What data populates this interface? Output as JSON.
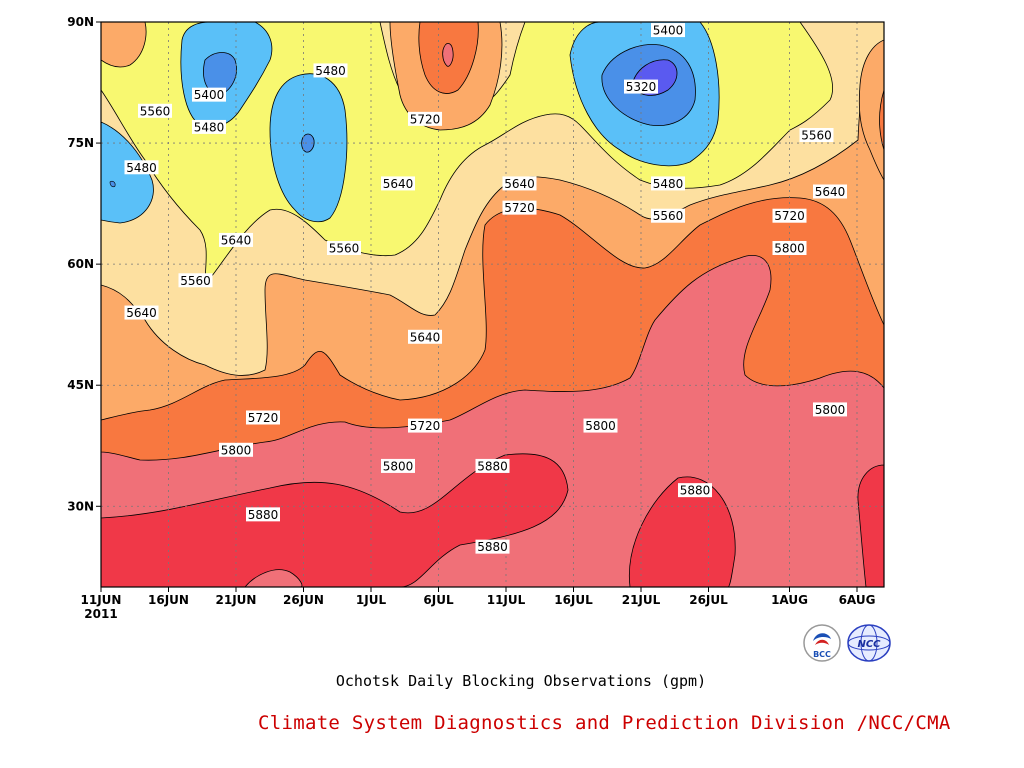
{
  "chart_data": {
    "type": "heatmap",
    "title": "Ochotsk Daily Blocking Observations (gpm)",
    "xlabel": "",
    "ylabel": "",
    "x_tick_labels": [
      "11JUN",
      "16JUN",
      "21JUN",
      "26JUN",
      "1JUL",
      "6JUL",
      "11JUL",
      "16JUL",
      "21JUL",
      "26JUL",
      "1AUG",
      "6AUG"
    ],
    "x_year_label": "2011",
    "x_range": [
      "2011-06-11",
      "2011-08-08"
    ],
    "y_tick_labels": [
      "30N",
      "45N",
      "60N",
      "75N",
      "90N"
    ],
    "y_range": [
      20,
      90
    ],
    "grid": true,
    "contour_levels": [
      5320,
      5400,
      5480,
      5560,
      5640,
      5720,
      5800,
      5880
    ],
    "fill_colors": {
      "below_5320": "#5a5af0",
      "5320_5400": "#4a90e8",
      "5400_5480": "#5ac0f8",
      "5480_5560": "#f8f870",
      "5560_5640": "#fde0a0",
      "5640_5720": "#fcaa68",
      "5720_5800": "#f87840",
      "5800_5880": "#f07078",
      "above_5880": "#f03848"
    },
    "contour_labels": [
      {
        "value": 5480,
        "date": "2011-06-14",
        "lat": 72
      },
      {
        "value": 5560,
        "date": "2011-06-15",
        "lat": 79
      },
      {
        "value": 5400,
        "date": "2011-06-19",
        "lat": 81
      },
      {
        "value": 5480,
        "date": "2011-06-19",
        "lat": 77
      },
      {
        "value": 5480,
        "date": "2011-06-28",
        "lat": 84
      },
      {
        "value": 5640,
        "date": "2011-06-21",
        "lat": 63
      },
      {
        "value": 5560,
        "date": "2011-06-29",
        "lat": 62
      },
      {
        "value": 5560,
        "date": "2011-06-18",
        "lat": 58
      },
      {
        "value": 5640,
        "date": "2011-06-14",
        "lat": 54
      },
      {
        "value": 5720,
        "date": "2011-07-05",
        "lat": 78
      },
      {
        "value": 5640,
        "date": "2011-07-03",
        "lat": 70
      },
      {
        "value": 5640,
        "date": "2011-07-12",
        "lat": 70
      },
      {
        "value": 5720,
        "date": "2011-07-12",
        "lat": 67
      },
      {
        "value": 5400,
        "date": "2011-07-23",
        "lat": 89
      },
      {
        "value": 5320,
        "date": "2011-07-21",
        "lat": 82
      },
      {
        "value": 5480,
        "date": "2011-07-23",
        "lat": 70
      },
      {
        "value": 5560,
        "date": "2011-07-23",
        "lat": 66
      },
      {
        "value": 5560,
        "date": "2011-08-03",
        "lat": 76
      },
      {
        "value": 5640,
        "date": "2011-08-04",
        "lat": 69
      },
      {
        "value": 5720,
        "date": "2011-08-01",
        "lat": 66
      },
      {
        "value": 5800,
        "date": "2011-08-01",
        "lat": 62
      },
      {
        "value": 5640,
        "date": "2011-07-05",
        "lat": 51
      },
      {
        "value": 5720,
        "date": "2011-06-23",
        "lat": 41
      },
      {
        "value": 5720,
        "date": "2011-07-05",
        "lat": 40
      },
      {
        "value": 5800,
        "date": "2011-06-21",
        "lat": 37
      },
      {
        "value": 5800,
        "date": "2011-07-03",
        "lat": 35
      },
      {
        "value": 5800,
        "date": "2011-07-18",
        "lat": 40
      },
      {
        "value": 5800,
        "date": "2011-08-04",
        "lat": 42
      },
      {
        "value": 5880,
        "date": "2011-06-23",
        "lat": 29
      },
      {
        "value": 5880,
        "date": "2011-07-10",
        "lat": 35
      },
      {
        "value": 5880,
        "date": "2011-07-25",
        "lat": 32
      },
      {
        "value": 5880,
        "date": "2011-07-10",
        "lat": 25
      }
    ]
  },
  "footer": {
    "credit": "Climate System Diagnostics and Prediction Division /NCC/CMA",
    "logos": [
      {
        "name": "bcc-logo",
        "text": "BCC"
      },
      {
        "name": "ncc-logo",
        "text": "NCC"
      }
    ]
  }
}
